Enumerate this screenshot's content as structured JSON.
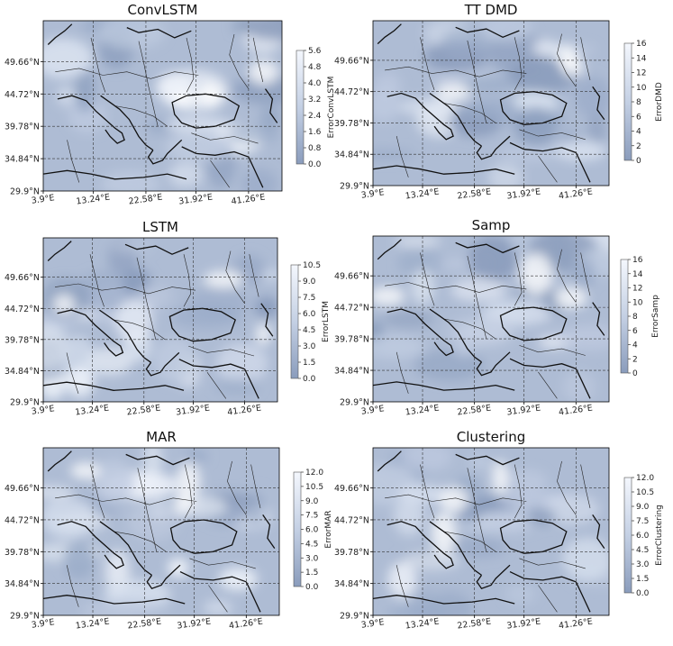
{
  "chart_data": [
    {
      "type": "heatmap",
      "title": "ConvLSTM",
      "colorbar_label": "ErrorConvLSTM",
      "colorbar_ticks": [
        "0.0",
        "0.8",
        "1.6",
        "2.4",
        "3.2",
        "4.0",
        "4.8",
        "5.6"
      ],
      "lat_ticks": [
        "49.66°N",
        "44.72°N",
        "39.78°N",
        "34.84°N",
        "29.9°N"
      ],
      "lon_ticks": [
        "3.9°E",
        "13.24°E",
        "22.58°E",
        "31.92°E",
        "41.26°E"
      ]
    },
    {
      "type": "heatmap",
      "title": "TT DMD",
      "colorbar_label": "ErrorDMD",
      "colorbar_ticks": [
        "0",
        "2",
        "4",
        "6",
        "8",
        "10",
        "12",
        "14",
        "16"
      ],
      "lat_ticks": [
        "49.66°N",
        "44.72°N",
        "39.78°N",
        "34.84°N",
        "29.9°N"
      ],
      "lon_ticks": [
        "3.9°E",
        "13.24°E",
        "22.58°E",
        "31.92°E",
        "41.26°E"
      ]
    },
    {
      "type": "heatmap",
      "title": "LSTM",
      "colorbar_label": "ErrorLSTM",
      "colorbar_ticks": [
        "0.0",
        "1.5",
        "3.0",
        "4.5",
        "6.0",
        "7.5",
        "9.0",
        "10.5"
      ],
      "lat_ticks": [
        "49.66°N",
        "44.72°N",
        "39.78°N",
        "34.84°N",
        "29.9°N"
      ],
      "lon_ticks": [
        "3.9°E",
        "13.24°E",
        "22.58°E",
        "31.92°E",
        "41.26°E"
      ]
    },
    {
      "type": "heatmap",
      "title": "Samp",
      "colorbar_label": "ErrorSamp",
      "colorbar_ticks": [
        "0",
        "2",
        "4",
        "6",
        "8",
        "10",
        "12",
        "14",
        "16"
      ],
      "lat_ticks": [
        "49.66°N",
        "44.72°N",
        "39.78°N",
        "34.84°N",
        "29.9°N"
      ],
      "lon_ticks": [
        "3.9°E",
        "13.24°E",
        "22.58°E",
        "31.92°E",
        "41.26°E"
      ]
    },
    {
      "type": "heatmap",
      "title": "MAR",
      "colorbar_label": "ErrorMAR",
      "colorbar_ticks": [
        "0.0",
        "1.5",
        "3.0",
        "4.5",
        "6.0",
        "7.5",
        "9.0",
        "10.5",
        "12.0"
      ],
      "lat_ticks": [
        "49.66°N",
        "44.72°N",
        "39.78°N",
        "34.84°N",
        "29.9°N"
      ],
      "lon_ticks": [
        "3.9°E",
        "13.24°E",
        "22.58°E",
        "31.92°E",
        "41.26°E"
      ]
    },
    {
      "type": "heatmap",
      "title": "Clustering",
      "colorbar_label": "ErrorClustering",
      "colorbar_ticks": [
        "0.0",
        "1.5",
        "3.0",
        "4.5",
        "6.0",
        "7.5",
        "9.0",
        "10.5",
        "12.0"
      ],
      "lat_ticks": [
        "49.66°N",
        "44.72°N",
        "39.78°N",
        "34.84°N",
        "29.9°N"
      ],
      "lon_ticks": [
        "3.9°E",
        "13.24°E",
        "22.58°E",
        "31.92°E",
        "41.26°E"
      ]
    }
  ],
  "colors": {
    "low": "#8a9cbc",
    "mid": "#c4d0e4",
    "high": "#f4f7fd",
    "coast": "#111111"
  }
}
